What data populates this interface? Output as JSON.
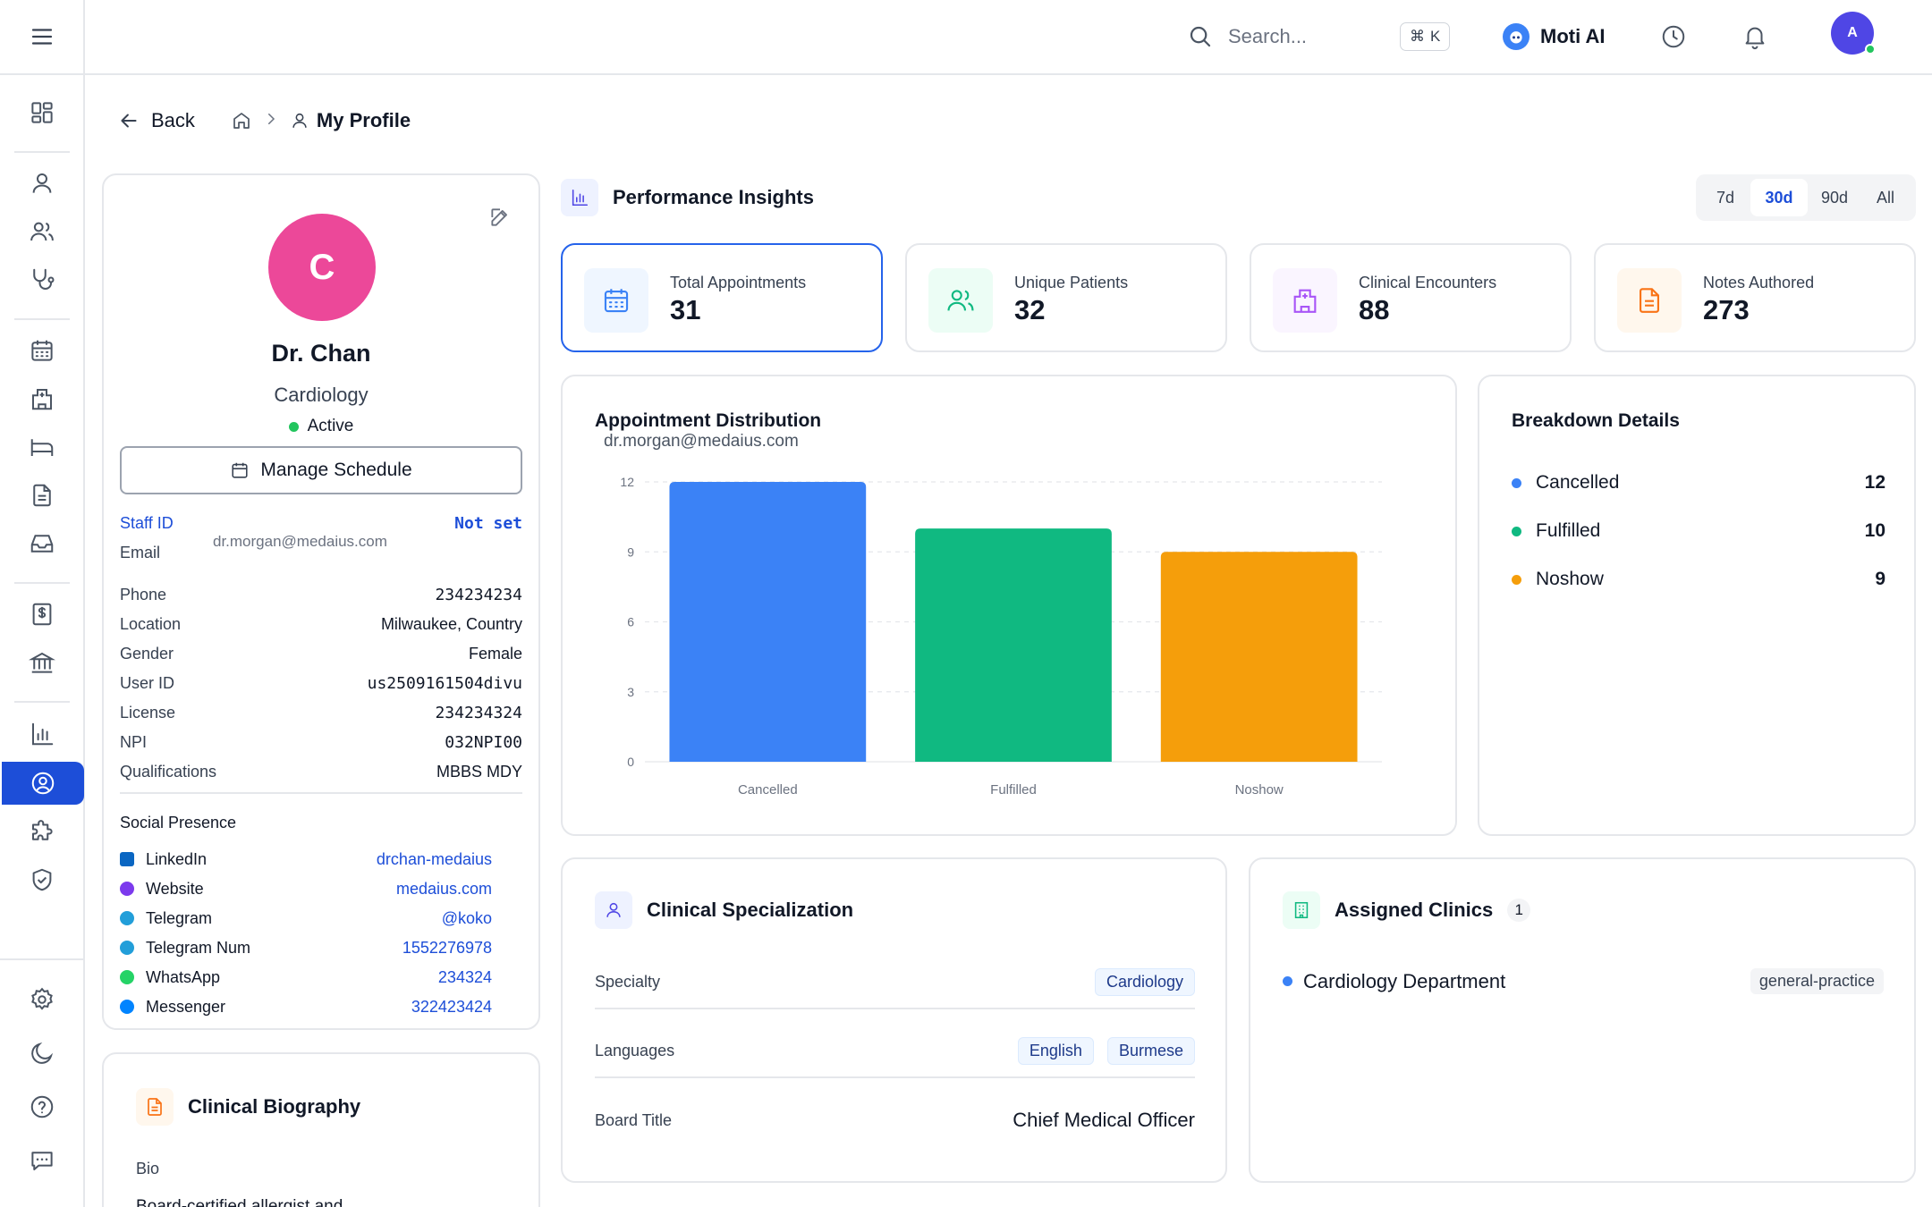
{
  "header": {
    "search_placeholder": "Search...",
    "shortcut_symbol": "⌘",
    "shortcut_key": "K",
    "assistant_name": "Moti AI",
    "user_initial": "A"
  },
  "breadcrumb": {
    "back_label": "Back",
    "current": "My Profile"
  },
  "profile": {
    "initial": "C",
    "name": "Dr. Chan",
    "specialty": "Cardiology",
    "status": "Active",
    "manage_label": "Manage Schedule",
    "staff_id_label": "Staff ID",
    "staff_id_value": "Not set",
    "email_label": "Email",
    "email_value": "dr.morgan@medaius.com",
    "fields": [
      {
        "label": "Phone",
        "value": "234234234"
      },
      {
        "label": "Location",
        "value": "Milwaukee, Country"
      },
      {
        "label": "Gender",
        "value": "Female"
      },
      {
        "label": "User ID",
        "value": "us2509161504divu"
      },
      {
        "label": "License",
        "value": "234234324"
      },
      {
        "label": "NPI",
        "value": "032NPI00"
      },
      {
        "label": "Qualifications",
        "value": "MBBS MDY"
      }
    ],
    "social_title": "Social Presence",
    "social": [
      {
        "label": "LinkedIn",
        "value": "drchan-medaius",
        "color": "#0a66c2"
      },
      {
        "label": "Website",
        "value": "medaius.com",
        "color": "#7c3aed"
      },
      {
        "label": "Telegram",
        "value": "@koko",
        "color": "#229ed9"
      },
      {
        "label": "Telegram Num",
        "value": "1552276978",
        "color": "#229ed9"
      },
      {
        "label": "WhatsApp",
        "value": "234324",
        "color": "#25d366"
      },
      {
        "label": "Messenger",
        "value": "322423424",
        "color": "#0084ff"
      }
    ]
  },
  "bio": {
    "title": "Clinical Biography",
    "label": "Bio",
    "text": "Board-certified allergist and"
  },
  "performance": {
    "title": "Performance Insights",
    "ranges": [
      "7d",
      "30d",
      "90d",
      "All"
    ],
    "active_range": "30d",
    "stats": [
      {
        "label": "Total Appointments",
        "value": "31"
      },
      {
        "label": "Unique Patients",
        "value": "32"
      },
      {
        "label": "Clinical Encounters",
        "value": "88"
      },
      {
        "label": "Notes Authored",
        "value": "273"
      }
    ]
  },
  "chart_title": "Appointment Distribution",
  "chart_subtitle": "dr.morgan@medaius.com",
  "chart_data": {
    "type": "bar",
    "title": "Appointment Distribution",
    "subtitle": "dr.morgan@medaius.com",
    "categories": [
      "Cancelled",
      "Fulfilled",
      "Noshow"
    ],
    "values": [
      12,
      10,
      9
    ],
    "colors": [
      "#3b82f6",
      "#10b981",
      "#f59e0b"
    ],
    "yticks": [
      0,
      3,
      6,
      9,
      12
    ],
    "ylim": [
      0,
      12
    ],
    "grid": true,
    "xlabel": "",
    "ylabel": ""
  },
  "breakdown": {
    "title": "Breakdown Details",
    "items": [
      {
        "label": "Cancelled",
        "value": "12",
        "color": "#3b82f6"
      },
      {
        "label": "Fulfilled",
        "value": "10",
        "color": "#10b981"
      },
      {
        "label": "Noshow",
        "value": "9",
        "color": "#f59e0b"
      }
    ]
  },
  "specialization": {
    "title": "Clinical Specialization",
    "specialty_label": "Specialty",
    "specialty_value": "Cardiology",
    "languages_label": "Languages",
    "languages": [
      "English",
      "Burmese"
    ],
    "board_label": "Board Title",
    "board_value": "Chief Medical Officer"
  },
  "clinics": {
    "title": "Assigned Clinics",
    "count": "1",
    "items": [
      {
        "name": "Cardiology Department",
        "tag": "general-practice"
      }
    ]
  }
}
